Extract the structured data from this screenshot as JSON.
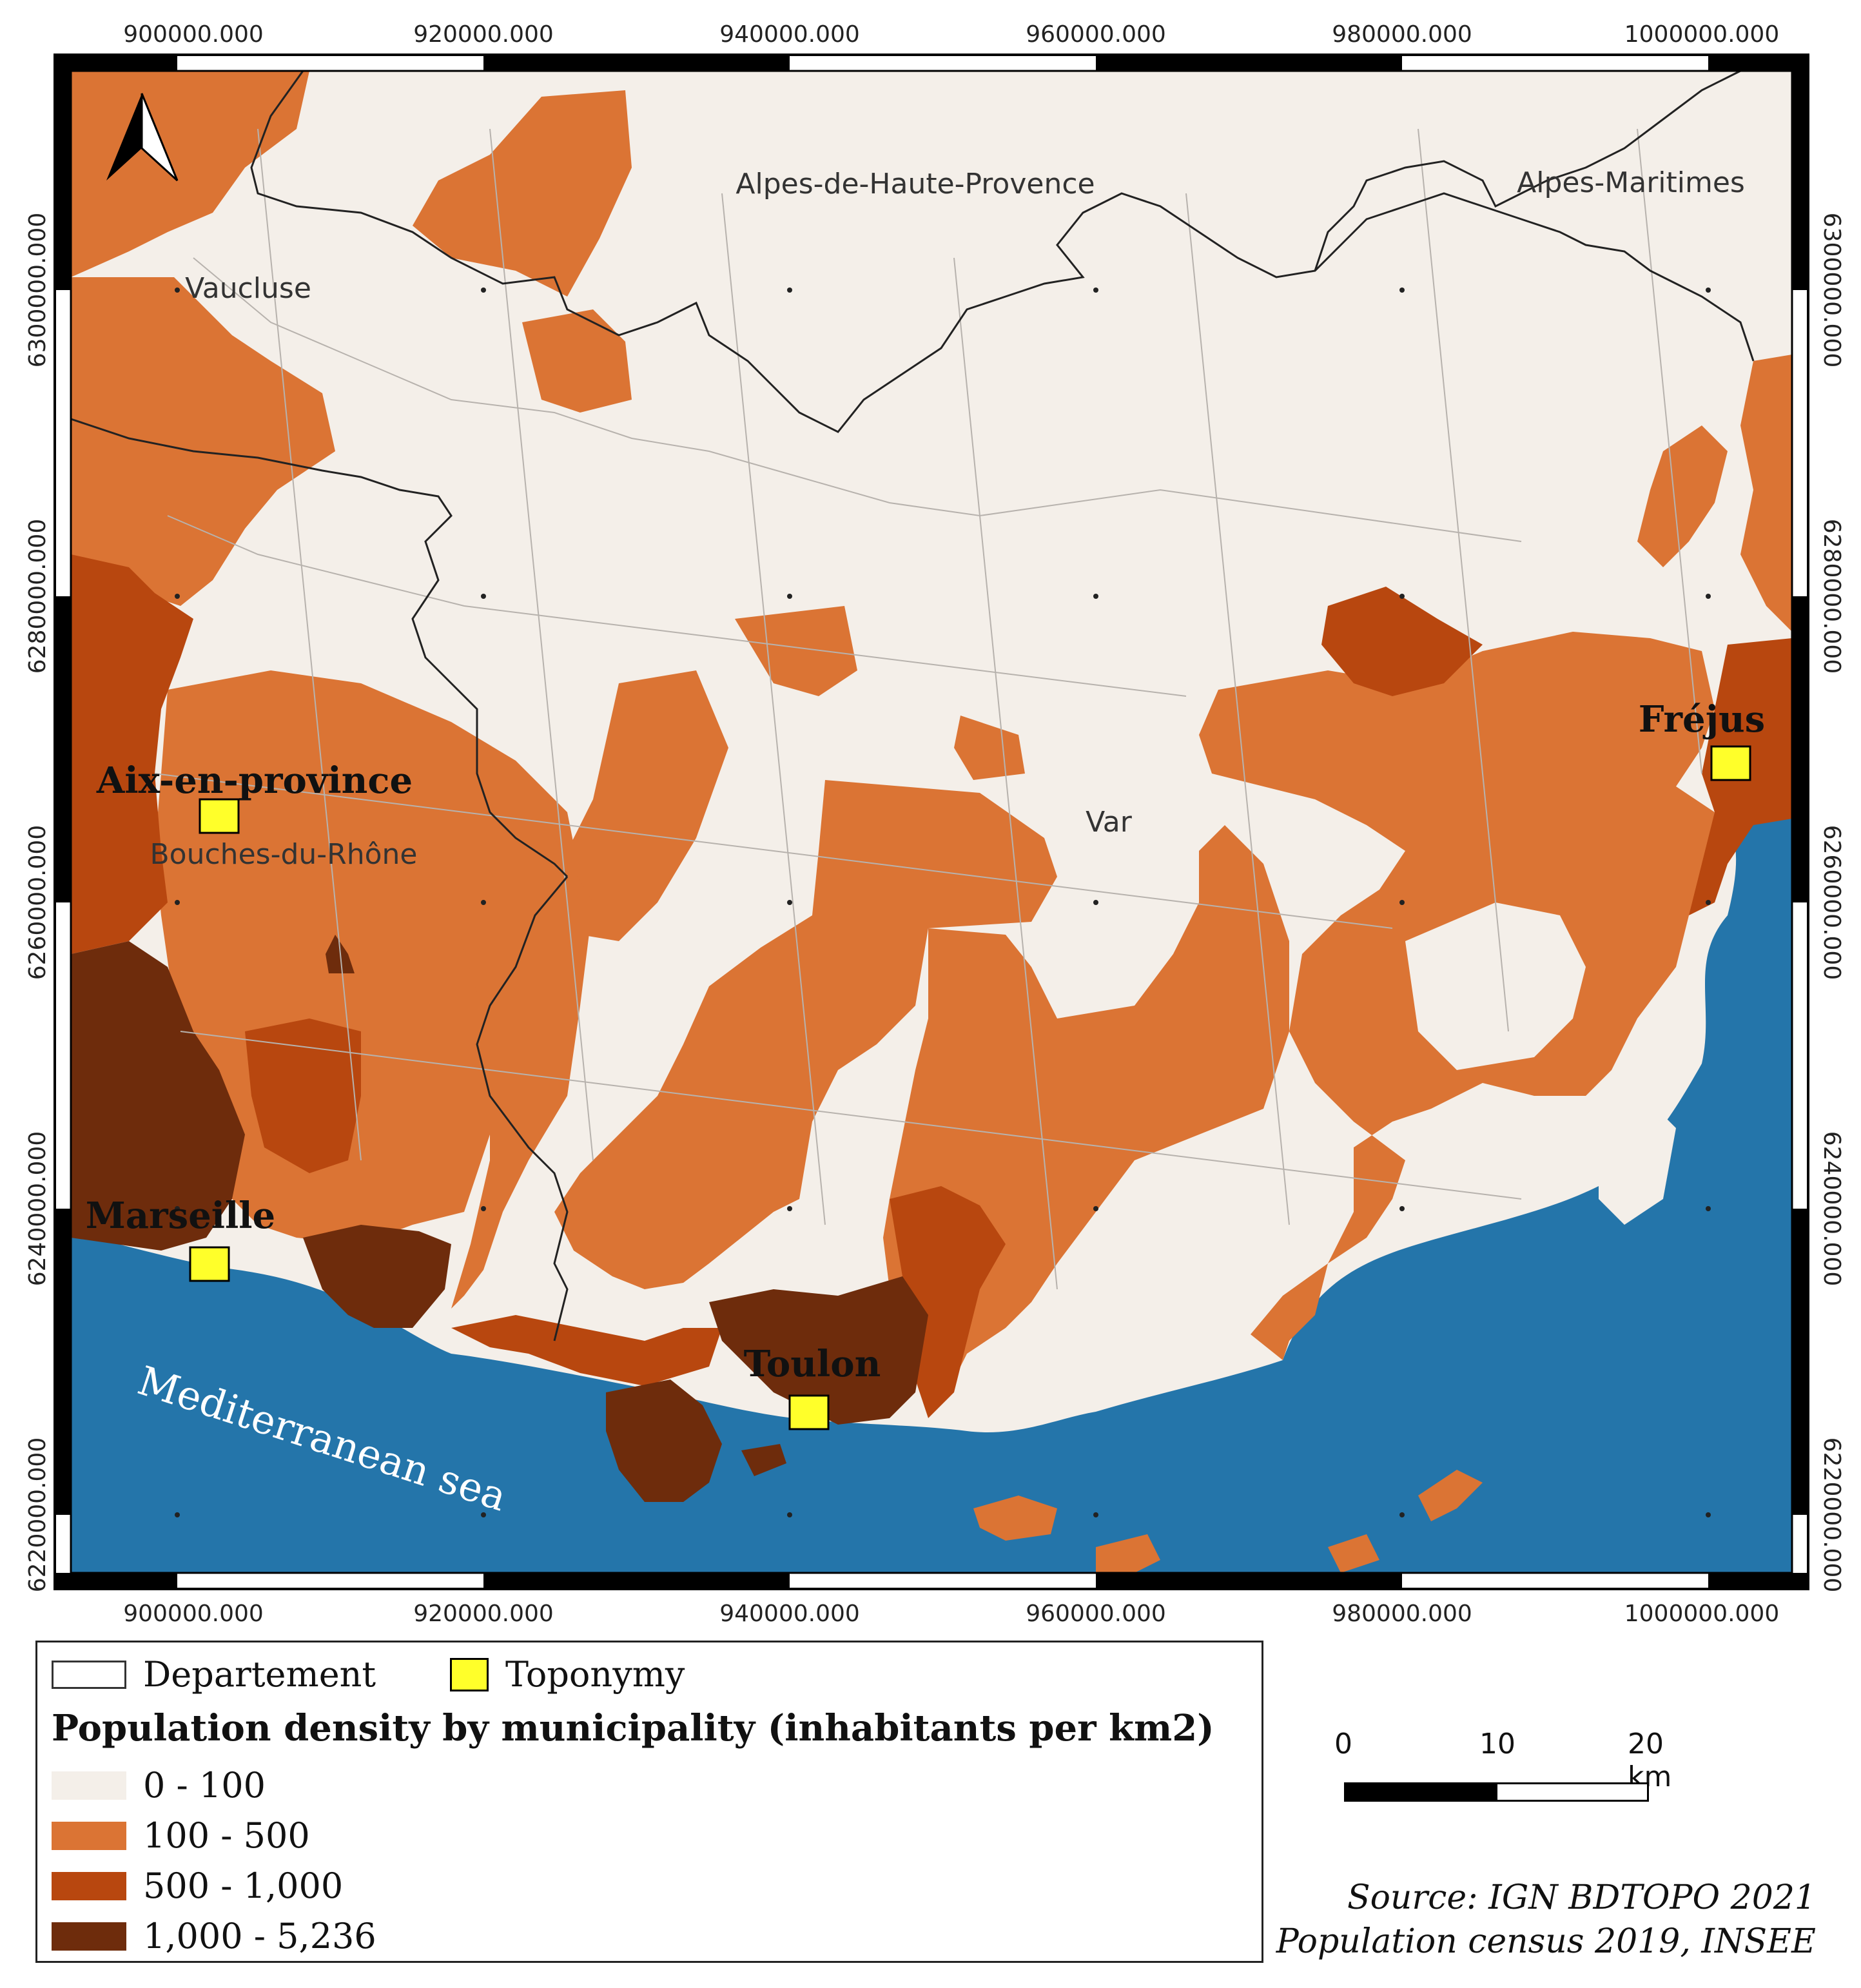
{
  "colors": {
    "dens_0_100": "#f4efe9",
    "dens_100_500": "#db7434",
    "dens_500_1000": "#b8470f",
    "dens_1000_5236": "#6e2c0c",
    "sea": "#2475aa",
    "toponymy": "#ffff2a",
    "department_border": "#222222"
  },
  "map": {
    "x_ticks": [
      "900000.000",
      "920000.000",
      "940000.000",
      "960000.000",
      "980000.000",
      "1000000.000"
    ],
    "y_ticks": [
      "6300000.000",
      "6280000.000",
      "6260000.000",
      "6240000.000",
      "6220000.000"
    ],
    "departments": [
      "Alpes-de-Haute-Provence",
      "Alpes-Maritimes",
      "Vaucluse",
      "Bouches-du-Rhône",
      "Var"
    ],
    "cities": [
      "Aix-en-province",
      "Marseille",
      "Toulon",
      "Fréjus"
    ],
    "sea_label": "Mediterranean sea",
    "north_arrow": "north-arrow-icon"
  },
  "legend": {
    "departement": "Departement",
    "toponymy": "Toponymy",
    "title": "Population density by municipality (inhabitants per km2)",
    "classes": [
      "0 - 100",
      "100 - 500",
      "500 - 1,000",
      "1,000 - 5,236"
    ]
  },
  "scale": {
    "labels": [
      "0",
      "10",
      "20 km"
    ]
  },
  "source": {
    "line1": "Source: IGN BDTOPO 2021",
    "line2": "Population census 2019, INSEE"
  }
}
